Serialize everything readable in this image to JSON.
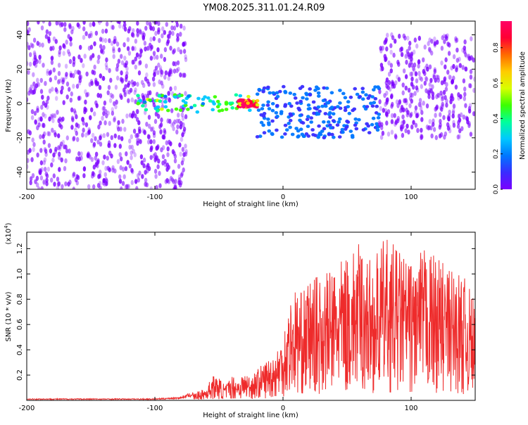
{
  "title": "YM08.2025.311.01.24.R09",
  "colors": {
    "snr_line": "#ee2b2b",
    "spectrum_bg": "#ffffff",
    "colorbar": [
      "#7b00ff",
      "#3a2cff",
      "#0077ff",
      "#00c8ff",
      "#00ff9c",
      "#3cff00",
      "#d8ff00",
      "#ffcc00",
      "#ff6a00",
      "#ff0033",
      "#ff0066"
    ]
  },
  "chart_data": [
    {
      "type": "heatmap",
      "title": "",
      "xlabel": "Height of straight line (km)",
      "ylabel": "Frequency (Hz)",
      "xlim": [
        -200,
        150
      ],
      "ylim": [
        -50,
        48
      ],
      "x_ticks": [
        "-200",
        "-100",
        "0",
        "100"
      ],
      "x_tick_values": [
        -200,
        -100,
        0,
        100
      ],
      "y_ticks": [
        "-40",
        "-20",
        "0",
        "20",
        "40"
      ],
      "y_tick_values": [
        -40,
        -20,
        0,
        20,
        40
      ],
      "colorbar": {
        "label": "Normalized spectral amplitude",
        "range": [
          0,
          0.95
        ],
        "ticks": [
          "0.0",
          "0.2",
          "0.4",
          "0.6",
          "0.8"
        ],
        "tick_values": [
          0.0,
          0.2,
          0.4,
          0.6,
          0.8
        ]
      },
      "features": [
        {
          "x_range": [
            -200,
            -75
          ],
          "freq_center": 0,
          "freq_halfwidth": 50,
          "amplitude": 0.05
        },
        {
          "x_range": [
            -115,
            -20
          ],
          "freq_center": 0,
          "freq_halfwidth": 5,
          "amplitude": 0.4
        },
        {
          "x_range": [
            -35,
            -20
          ],
          "freq_center": 0,
          "freq_halfwidth": 2,
          "amplitude": 0.9
        },
        {
          "x_range": [
            -20,
            75
          ],
          "freq_center": -5,
          "freq_halfwidth": 15,
          "amplitude": 0.15
        },
        {
          "x_range": [
            75,
            150
          ],
          "freq_center": 10,
          "freq_halfwidth": 30,
          "amplitude": 0.1
        }
      ]
    },
    {
      "type": "line",
      "title": "",
      "xlabel": "Height of straight line (km)",
      "ylabel": "SNR (10 * v/v)",
      "y_multiplier": "(x10",
      "y_multiplier_exp": "4",
      "y_multiplier_close": ")",
      "xlim": [
        -200,
        150
      ],
      "ylim": [
        0,
        1.33
      ],
      "x_ticks": [
        "-200",
        "-100",
        "0",
        "100"
      ],
      "x_tick_values": [
        -200,
        -100,
        0,
        100
      ],
      "y_ticks": [
        "0.2",
        "0.4",
        "0.6",
        "0.8",
        "1.0",
        "1.2"
      ],
      "y_tick_values": [
        0.2,
        0.4,
        0.6,
        0.8,
        1.0,
        1.2
      ],
      "series": [
        {
          "x": [
            -200,
            -180,
            -160,
            -140,
            -120,
            -100,
            -80,
            -70,
            -60,
            -55,
            -50,
            -45,
            -40,
            -35,
            -30,
            -25,
            -20,
            -15,
            -10,
            -5,
            0,
            5,
            10,
            15,
            20,
            30,
            40,
            50,
            60,
            70,
            80,
            90,
            100,
            110,
            120,
            130,
            140,
            150
          ],
          "y": [
            0.01,
            0.01,
            0.01,
            0.01,
            0.01,
            0.01,
            0.02,
            0.05,
            0.1,
            0.2,
            0.18,
            0.12,
            0.2,
            0.18,
            0.22,
            0.2,
            0.25,
            0.3,
            0.35,
            0.4,
            0.55,
            0.8,
            0.9,
            0.85,
            0.95,
            1.0,
            1.05,
            1.15,
            1.25,
            1.1,
            1.3,
            1.2,
            1.1,
            1.2,
            1.15,
            1.05,
            1.0,
            0.8
          ]
        }
      ]
    }
  ]
}
